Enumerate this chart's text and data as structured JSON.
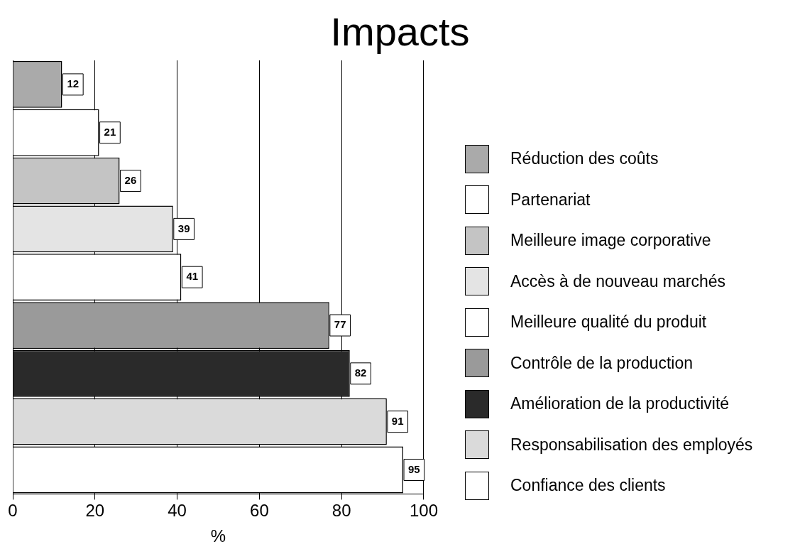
{
  "chart_data": {
    "type": "bar",
    "title": "Impacts",
    "xlabel": "%",
    "orientation": "horizontal",
    "categories": [
      null,
      null,
      null,
      null,
      null,
      null,
      null,
      null,
      null
    ],
    "series": [
      {
        "name": "Réduction des coûts",
        "color": "#aaaaaa",
        "values": [
          12,
          null,
          null,
          null,
          null,
          null,
          null,
          null,
          null
        ]
      },
      {
        "name": "Partenariat",
        "color": "#ffffff",
        "values": [
          null,
          21,
          null,
          null,
          null,
          null,
          null,
          null,
          null
        ]
      },
      {
        "name": "Meilleure image corporative",
        "color": "#c4c4c4",
        "values": [
          null,
          null,
          26,
          null,
          null,
          null,
          null,
          null,
          null
        ]
      },
      {
        "name": "Accès à de nouveau marchés",
        "color": "#e4e4e4",
        "values": [
          null,
          null,
          null,
          39,
          null,
          null,
          null,
          null,
          null
        ]
      },
      {
        "name": "Meilleure qualité du produit",
        "color": "#ffffff",
        "values": [
          null,
          null,
          null,
          null,
          41,
          null,
          null,
          null,
          null
        ]
      },
      {
        "name": "Contrôle de la production",
        "color": "#9a9a9a",
        "values": [
          null,
          null,
          null,
          null,
          null,
          77,
          null,
          null,
          null
        ]
      },
      {
        "name": "Amélioration de la productivité",
        "color": "#2a2a2a",
        "values": [
          null,
          null,
          null,
          null,
          null,
          null,
          82,
          null,
          null
        ]
      },
      {
        "name": "Responsabilisation des employés",
        "color": "#dadada",
        "values": [
          null,
          null,
          null,
          null,
          null,
          null,
          null,
          91,
          null
        ]
      },
      {
        "name": "Confiance des clients",
        "color": "#ffffff",
        "values": [
          null,
          null,
          null,
          null,
          null,
          null,
          null,
          null,
          95
        ]
      }
    ],
    "xlim": [
      0,
      100
    ],
    "xticks": [
      0,
      20,
      40,
      60,
      80,
      100
    ],
    "grid": "x",
    "legend": "right",
    "tick_labels": "x",
    "data_labels": true
  }
}
